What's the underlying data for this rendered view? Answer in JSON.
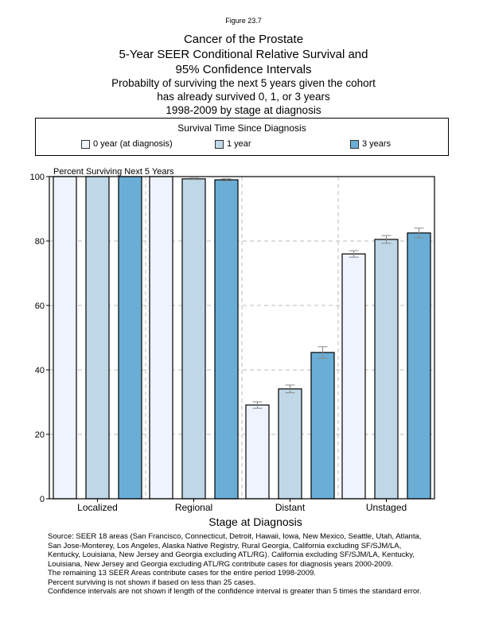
{
  "figure_number": "Figure 23.7",
  "title_lines": [
    "Cancer of the Prostate",
    "5-Year SEER Conditional Relative Survival and",
    "95% Confidence Intervals"
  ],
  "subtitle_lines": [
    "Probabilty of surviving the next 5 years given the cohort",
    "has already survived 0, 1, or 3 years",
    "1998-2009 by stage at diagnosis"
  ],
  "legend": {
    "title": "Survival Time Since Diagnosis",
    "placement": "top",
    "items": [
      {
        "label": "0 year (at diagnosis)",
        "color": "#eef3fd"
      },
      {
        "label": "1 year",
        "color": "#bfd7e6"
      },
      {
        "label": "3 years",
        "color": "#6aaed6"
      }
    ]
  },
  "chart_data": {
    "type": "bar",
    "ylabel": "Percent Surviving Next 5 Years",
    "xlabel": "Stage at Diagnosis",
    "ylim": [
      0,
      100
    ],
    "yticks": [
      0,
      20,
      40,
      60,
      80,
      100
    ],
    "grid": true,
    "categories": [
      "Localized",
      "Regional",
      "Distant",
      "Unstaged"
    ],
    "series": [
      {
        "name": "0 year (at diagnosis)",
        "color": "#eef3fd",
        "values": [
          100,
          100,
          29.1,
          76.0
        ],
        "ci": [
          null,
          null,
          [
            28.1,
            30.1
          ],
          [
            75.0,
            77.0
          ]
        ]
      },
      {
        "name": "1 year",
        "color": "#bfd7e6",
        "values": [
          100,
          99.3,
          34.1,
          80.5
        ],
        "ci": [
          null,
          [
            99.1,
            99.5
          ],
          [
            32.9,
            35.3
          ],
          [
            79.3,
            81.7
          ]
        ]
      },
      {
        "name": "3 years",
        "color": "#6aaed6",
        "values": [
          100,
          99.0,
          45.4,
          82.5
        ],
        "ci": [
          null,
          [
            98.7,
            99.3
          ],
          [
            43.6,
            47.2
          ],
          [
            81.0,
            84.0
          ]
        ]
      }
    ]
  },
  "source_lines": [
    "Source:  SEER 18 areas (San Francisco, Connecticut, Detroit, Hawaii, Iowa, New Mexico, Seattle, Utah, Atlanta,",
    "San Jose-Monterey, Los Angeles, Alaska Native Registry, Rural Georgia, California excluding SF/SJM/LA,",
    "Kentucky, Louisiana, New Jersey and Georgia excluding ATL/RG). California excluding SF/SJM/LA, Kentucky,",
    "Louisiana, New Jersey and Georgia excluding ATL/RG contribute cases for diagnosis years 2000-2009.",
    "The remaining 13 SEER Areas contribute cases for the entire period 1998-2009.",
    "Percent surviving is not shown if based on less than 25 cases.",
    "Confidence intervals are not shown if length of the confidence interval is greater than 5 times the standard error."
  ]
}
